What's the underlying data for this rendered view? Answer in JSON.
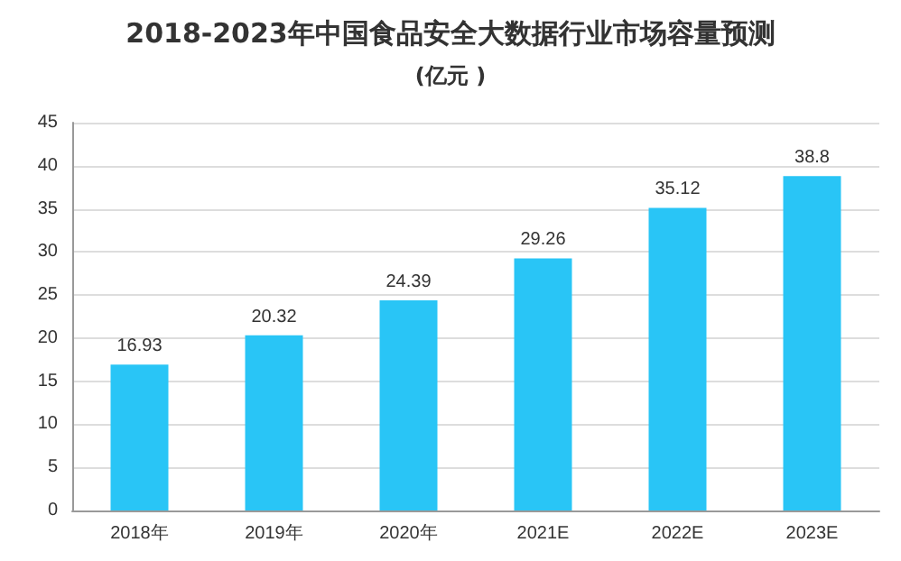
{
  "chart_data": {
    "type": "bar",
    "title": "2018-2023年中国食品安全大数据行业市场容量预测",
    "subtitle": "(亿元 )",
    "categories": [
      "2018年",
      "2019年",
      "2020年",
      "2021E",
      "2022E",
      "2023E"
    ],
    "values": [
      16.93,
      20.32,
      24.39,
      29.26,
      35.12,
      38.8
    ],
    "color": "#29c5f6",
    "ylim": [
      0,
      45
    ],
    "yticks": [
      0,
      5,
      10,
      15,
      20,
      25,
      30,
      35,
      40,
      45
    ],
    "grid": "y",
    "data_labels": true
  }
}
